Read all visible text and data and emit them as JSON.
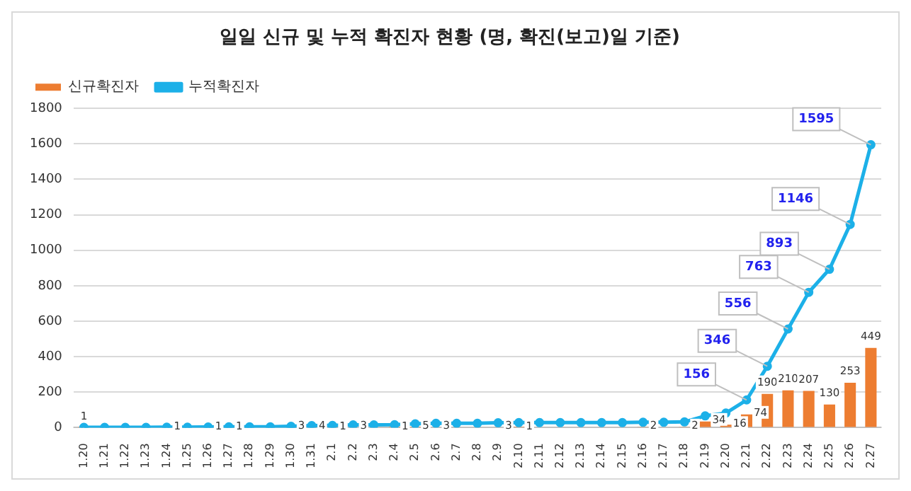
{
  "chart_data": {
    "type": "bar",
    "title": "일일 신규 및 누적 확진자 현황 (명, 확진(보고)일 기준)",
    "categories": [
      "1.20",
      "1.21",
      "1.22",
      "1.23",
      "1.24",
      "1.25",
      "1.26",
      "1.27",
      "1.28",
      "1.29",
      "1.30",
      "1.31",
      "2.1",
      "2.2",
      "2.3",
      "2.4",
      "2.5",
      "2.6",
      "2.7",
      "2.8",
      "2.9",
      "2.10",
      "2.11",
      "2.12",
      "2.13",
      "2.14",
      "2.15",
      "2.16",
      "2.17",
      "2.18",
      "2.19",
      "2.20",
      "2.21",
      "2.22",
      "2.23",
      "2.24",
      "2.25",
      "2.26",
      "2.27"
    ],
    "series": [
      {
        "name": "신규확진자",
        "color": "#ed7d31",
        "values": [
          1,
          0,
          0,
          0,
          1,
          0,
          1,
          1,
          0,
          0,
          3,
          4,
          1,
          3,
          0,
          1,
          5,
          3,
          0,
          0,
          3,
          1,
          0,
          0,
          0,
          0,
          0,
          2,
          0,
          2,
          34,
          16,
          74,
          190,
          210,
          207,
          130,
          253,
          449
        ],
        "value_labels": [
          "1",
          null,
          null,
          null,
          "1",
          null,
          "1",
          "1",
          null,
          null,
          "3",
          "4",
          "1",
          "3",
          null,
          "1",
          "5",
          "3",
          null,
          null,
          "3",
          "1",
          null,
          null,
          null,
          null,
          null,
          "2",
          null,
          "2",
          "34",
          "16",
          "74",
          "190",
          "210",
          "207",
          "130",
          "253",
          "449"
        ]
      },
      {
        "name": "누적확진자",
        "type": "line",
        "color": "#1cb0e8",
        "marker": "circle",
        "values": [
          1,
          1,
          1,
          1,
          2,
          2,
          3,
          4,
          4,
          4,
          7,
          11,
          12,
          15,
          15,
          16,
          21,
          24,
          24,
          24,
          27,
          28,
          28,
          28,
          28,
          28,
          28,
          30,
          30,
          32,
          66,
          82,
          156,
          346,
          556,
          763,
          893,
          1146,
          1595
        ],
        "value_labels": [
          null,
          null,
          null,
          null,
          null,
          null,
          null,
          null,
          null,
          null,
          null,
          null,
          null,
          null,
          null,
          null,
          null,
          null,
          null,
          null,
          null,
          null,
          null,
          null,
          null,
          null,
          null,
          null,
          null,
          null,
          null,
          null,
          "156",
          "346",
          "556",
          "763",
          "893",
          "1146",
          "1595"
        ]
      }
    ],
    "ylim": [
      0,
      1800
    ],
    "yticks": [
      0,
      200,
      400,
      600,
      800,
      1000,
      1200,
      1400,
      1600,
      1800
    ],
    "grid": "y",
    "legend": "top left"
  }
}
